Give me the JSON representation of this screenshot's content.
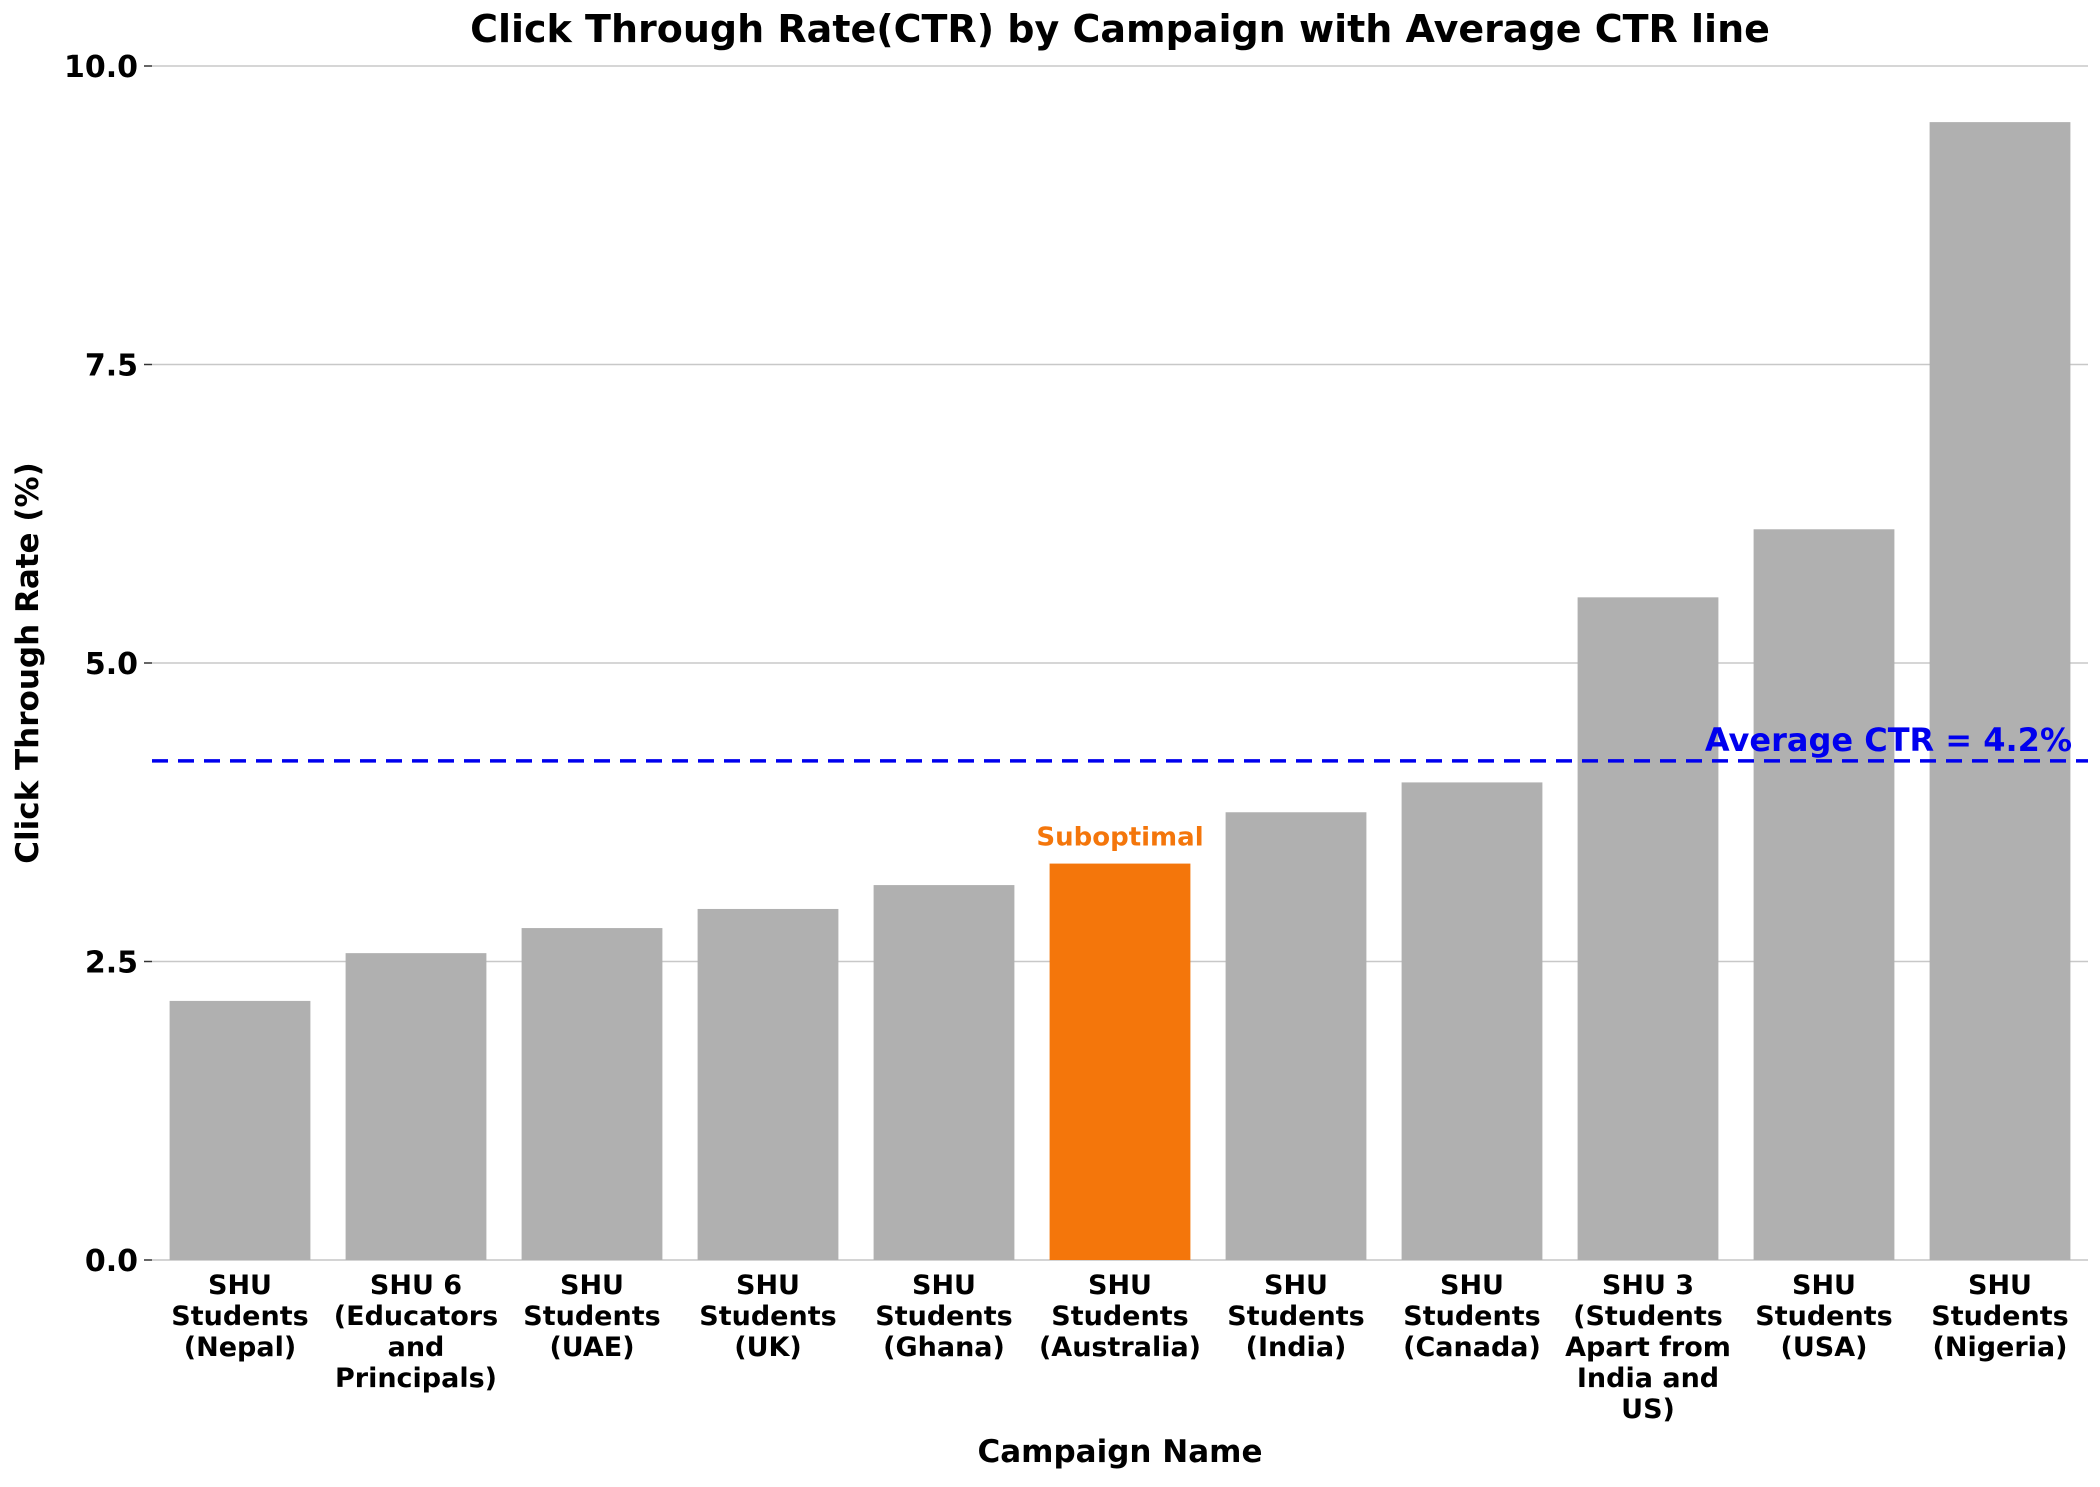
{
  "chart_data": {
    "type": "bar",
    "title": "Click Through Rate(CTR) by Campaign with Average CTR line",
    "xlabel": "Campaign Name",
    "ylabel": "Click Through Rate (%)",
    "ylim": [
      0,
      10
    ],
    "yticks": [
      "0.0",
      "2.5",
      "5.0",
      "7.5",
      "10.0"
    ],
    "ytick_values": [
      0,
      2.5,
      5.0,
      7.5,
      10.0
    ],
    "grid": true,
    "categories": [
      "SHU Students (Nepal)",
      "SHU 6 (Educators and Principals)",
      "SHU Students (UAE)",
      "SHU Students (UK)",
      "SHU Students (Ghana)",
      "SHU Students (Australia)",
      "SHU Students (India)",
      "SHU Students (Canada)",
      "SHU 3 (Students Apart from India and US)",
      "SHU Students (USA)",
      "SHU Students (Nigeria)"
    ],
    "category_label_lines": [
      [
        "SHU",
        "Students",
        "(Nepal)"
      ],
      [
        "SHU 6",
        "(Educators",
        "and",
        "Principals)"
      ],
      [
        "SHU",
        "Students",
        "(UAE)"
      ],
      [
        "SHU",
        "Students",
        "(UK)"
      ],
      [
        "SHU",
        "Students",
        "(Ghana)"
      ],
      [
        "SHU",
        "Students",
        "(Australia)"
      ],
      [
        "SHU",
        "Students",
        "(India)"
      ],
      [
        "SHU",
        "Students",
        "(Canada)"
      ],
      [
        "SHU 3",
        "(Students",
        "Apart from",
        "India and",
        "US)"
      ],
      [
        "SHU",
        "Students",
        "(USA)"
      ],
      [
        "SHU",
        "Students",
        "(Nigeria)"
      ]
    ],
    "values": [
      2.17,
      2.57,
      2.78,
      2.94,
      3.14,
      3.32,
      3.75,
      4.0,
      5.55,
      6.12,
      9.53
    ],
    "bar_color": "#b0b0b0",
    "highlight": {
      "index": 5,
      "color": "#f4760b",
      "label": "Suboptimal"
    },
    "reference_line": {
      "value": 4.18,
      "label": "Average CTR = 4.2%",
      "color": "#0000ee",
      "style": "dashed"
    }
  }
}
